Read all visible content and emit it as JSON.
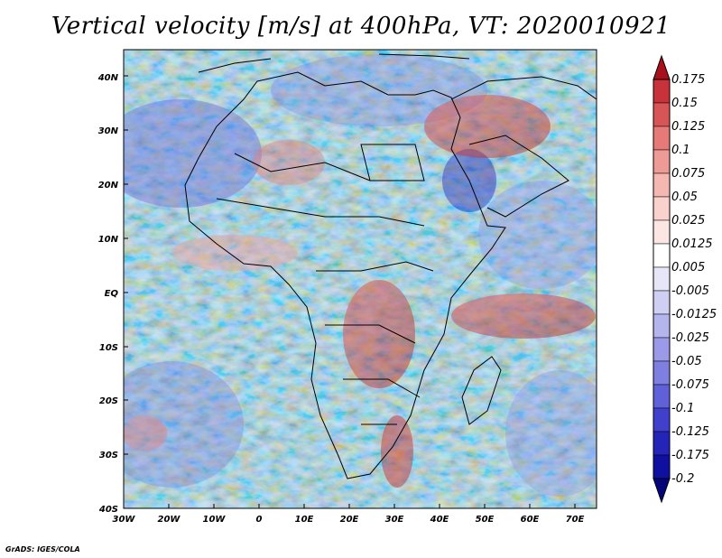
{
  "title": "Vertical velocity [m/s] at 400hPa, VT: 2020010921",
  "credit": "GrADS: IGES/COLA",
  "map": {
    "lat_labels": [
      "40N",
      "30N",
      "20N",
      "10N",
      "EQ",
      "10S",
      "20S",
      "30S",
      "40S"
    ],
    "lon_labels": [
      "30W",
      "20W",
      "10W",
      "0",
      "10E",
      "20E",
      "30E",
      "40E",
      "50E",
      "60E",
      "70E"
    ]
  },
  "colorbar": {
    "labels": [
      "0.175",
      "0.15",
      "0.125",
      "0.1",
      "0.075",
      "0.05",
      "0.025",
      "0.0125",
      "0.005",
      "-0.005",
      "-0.0125",
      "-0.025",
      "-0.05",
      "-0.075",
      "-0.1",
      "-0.125",
      "-0.175",
      "-0.2"
    ],
    "colors": [
      "#a8101a",
      "#c8323a",
      "#d85557",
      "#e67a78",
      "#ee9a96",
      "#f4b7b2",
      "#f9d1cd",
      "#fce6e3",
      "#ffffff",
      "#e6e6f8",
      "#cfcff3",
      "#b5b5ee",
      "#9a9ae8",
      "#7f7fe1",
      "#6060d9",
      "#4040cc",
      "#2424b8",
      "#1010a0",
      "#05057a"
    ]
  }
}
